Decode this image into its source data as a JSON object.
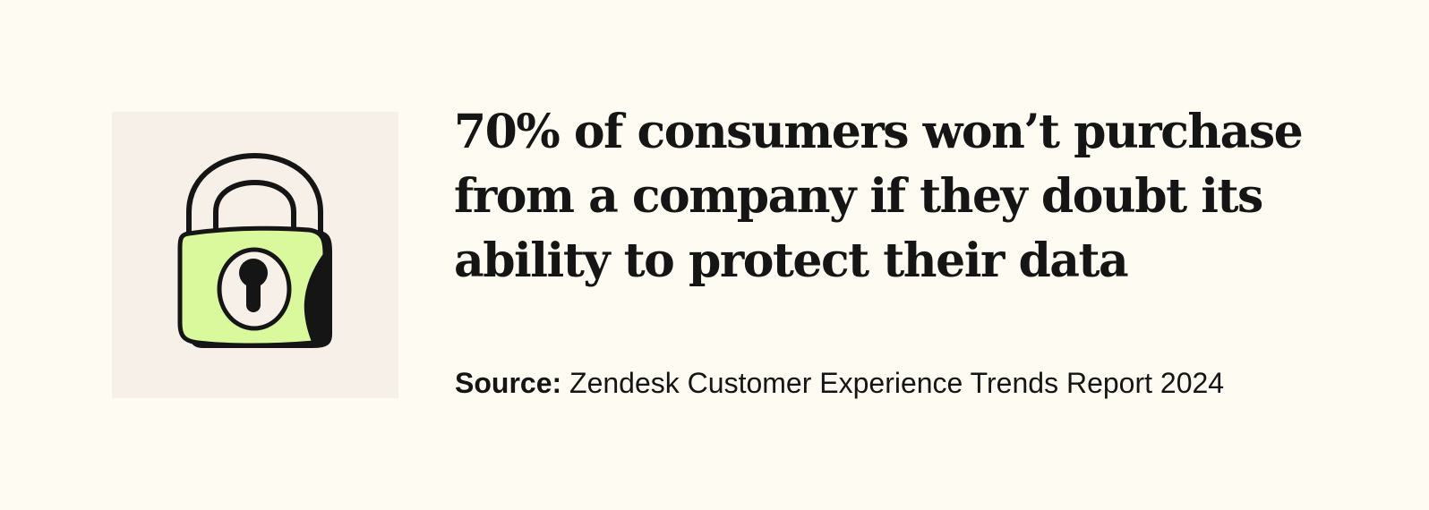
{
  "headline": "70% of consumers won’t purchase from a company if they doubt its ability to protect their data",
  "source": {
    "label": "Source:",
    "text": "Zendesk Customer Experience Trends Report 2024"
  },
  "illustration": {
    "icon": "padlock-icon",
    "keyhole_icon": "keyhole-icon"
  },
  "colors": {
    "background": "#fefbf2",
    "illustration_panel": "#f6f0e8",
    "lock_body": "#d9f99c",
    "ink": "#151515"
  }
}
